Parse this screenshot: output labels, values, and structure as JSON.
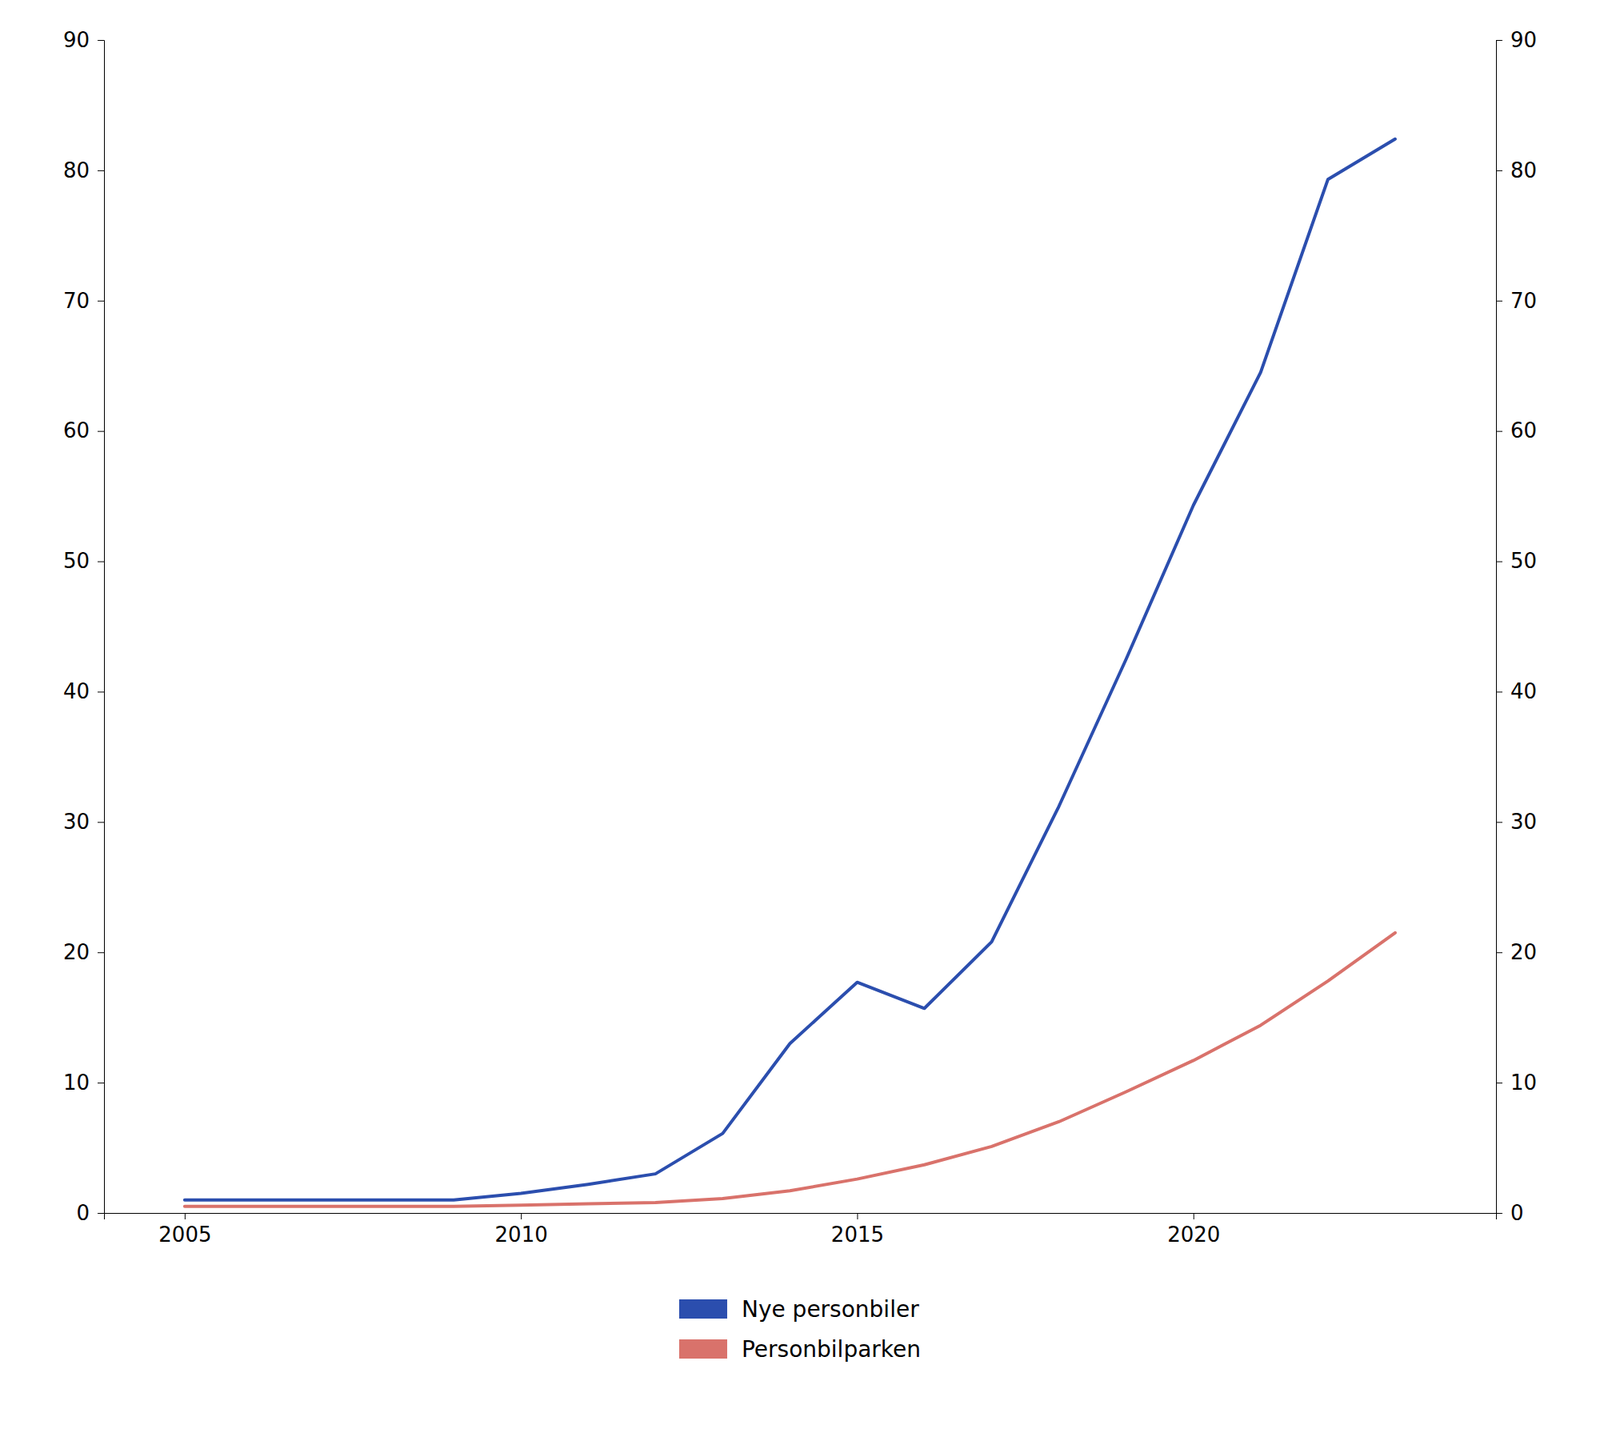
{
  "chart_data": {
    "type": "line",
    "x": [
      2005,
      2006,
      2007,
      2008,
      2009,
      2010,
      2011,
      2012,
      2013,
      2014,
      2015,
      2016,
      2017,
      2018,
      2019,
      2020,
      2021,
      2022,
      2023
    ],
    "series": [
      {
        "name": "Nye personbiler",
        "color": "#2B4EAE",
        "values": [
          1.0,
          1.0,
          1.0,
          1.0,
          1.0,
          1.5,
          2.2,
          3.0,
          6.1,
          13.0,
          17.7,
          15.7,
          20.8,
          31.2,
          42.5,
          54.3,
          64.5,
          79.3,
          82.4
        ]
      },
      {
        "name": "Personbilparken",
        "color": "#D9726B",
        "values": [
          0.5,
          0.5,
          0.5,
          0.5,
          0.5,
          0.6,
          0.7,
          0.8,
          1.1,
          1.7,
          2.6,
          3.7,
          5.1,
          7.0,
          9.3,
          11.7,
          14.4,
          17.8,
          21.5
        ]
      }
    ],
    "xlim": [
      2003.8,
      2024.5
    ],
    "xticks": [
      2005,
      2010,
      2015,
      2020
    ],
    "ylim": [
      0,
      90
    ],
    "yticks": [
      0,
      10,
      20,
      30,
      40,
      50,
      60,
      70,
      80,
      90
    ],
    "y2lim": [
      0,
      90
    ],
    "y2ticks": [
      0,
      10,
      20,
      30,
      40,
      50,
      60,
      70,
      80,
      90
    ],
    "grid": false,
    "legend": "bottom"
  }
}
